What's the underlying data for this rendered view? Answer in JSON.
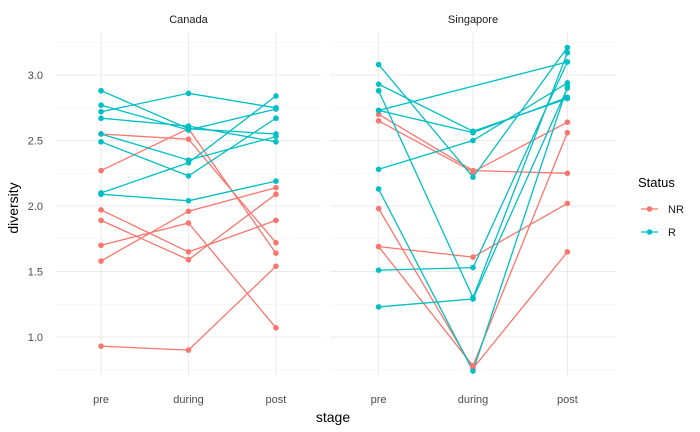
{
  "chart_data": {
    "type": "line",
    "xlabel": "stage",
    "ylabel": "diversity",
    "x_categories": [
      "pre",
      "during",
      "post"
    ],
    "yticks": [
      1.0,
      1.5,
      2.0,
      2.5,
      3.0
    ],
    "ytick_labels": [
      "1.0",
      "1.5",
      "2.0",
      "2.5",
      "3.0"
    ],
    "ylim": [
      0.7,
      3.3
    ],
    "grid": true,
    "legend": {
      "title": "Status",
      "position": "right",
      "entries": [
        {
          "key": "NR",
          "label": "NR",
          "color": "#F8766D"
        },
        {
          "key": "R",
          "label": "R",
          "color": "#00BFC4"
        }
      ]
    },
    "facets": [
      {
        "label": "Canada",
        "lines": [
          {
            "status": "NR",
            "values": [
              2.27,
              2.59,
              1.64
            ]
          },
          {
            "status": "NR",
            "values": [
              2.55,
              2.51,
              1.72
            ]
          },
          {
            "status": "NR",
            "values": [
              1.97,
              1.65,
              1.89
            ]
          },
          {
            "status": "NR",
            "values": [
              1.89,
              1.59,
              2.09
            ]
          },
          {
            "status": "NR",
            "values": [
              1.7,
              1.87,
              1.07
            ]
          },
          {
            "status": "NR",
            "values": [
              1.58,
              1.96,
              2.14
            ]
          },
          {
            "status": "NR",
            "values": [
              0.93,
              0.9,
              1.54
            ]
          },
          {
            "status": "R",
            "values": [
              2.88,
              2.59,
              2.55
            ]
          },
          {
            "status": "R",
            "values": [
              2.77,
              2.58,
              2.74
            ]
          },
          {
            "status": "R",
            "values": [
              2.72,
              2.86,
              2.75
            ]
          },
          {
            "status": "R",
            "values": [
              2.67,
              2.61,
              2.49
            ]
          },
          {
            "status": "R",
            "values": [
              2.55,
              2.35,
              2.53
            ]
          },
          {
            "status": "R",
            "values": [
              2.49,
              2.23,
              2.67
            ]
          },
          {
            "status": "R",
            "values": [
              2.1,
              2.33,
              2.84
            ]
          },
          {
            "status": "R",
            "values": [
              2.09,
              2.04,
              2.19
            ]
          }
        ]
      },
      {
        "label": "Singapore",
        "lines": [
          {
            "status": "NR",
            "values": [
              2.7,
              2.27,
              2.25
            ]
          },
          {
            "status": "NR",
            "values": [
              2.65,
              2.26,
              2.64
            ]
          },
          {
            "status": "NR",
            "values": [
              1.98,
              0.76,
              1.65
            ]
          },
          {
            "status": "NR",
            "values": [
              1.69,
              1.61,
              2.02
            ]
          },
          {
            "status": "NR",
            "values": [
              1.69,
              0.78,
              2.56
            ]
          },
          {
            "status": "R",
            "values": [
              3.08,
              2.22,
              3.21
            ]
          },
          {
            "status": "R",
            "values": [
              2.93,
              2.57,
              2.82
            ]
          },
          {
            "status": "R",
            "values": [
              2.88,
              1.3,
              3.17
            ]
          },
          {
            "status": "R",
            "values": [
              2.73,
              2.56,
              2.83
            ]
          },
          {
            "status": "R",
            "values": [
              2.28,
              2.5,
              2.94
            ]
          },
          {
            "status": "R",
            "values": [
              2.13,
              0.74,
              2.91
            ]
          },
          {
            "status": "R",
            "values": [
              1.51,
              1.53,
              3.1
            ]
          },
          {
            "status": "R",
            "values": [
              1.23,
              1.29,
              2.9
            ]
          },
          {
            "status": "R",
            "values": [
              2.73,
              null,
              3.1
            ]
          }
        ]
      }
    ]
  }
}
